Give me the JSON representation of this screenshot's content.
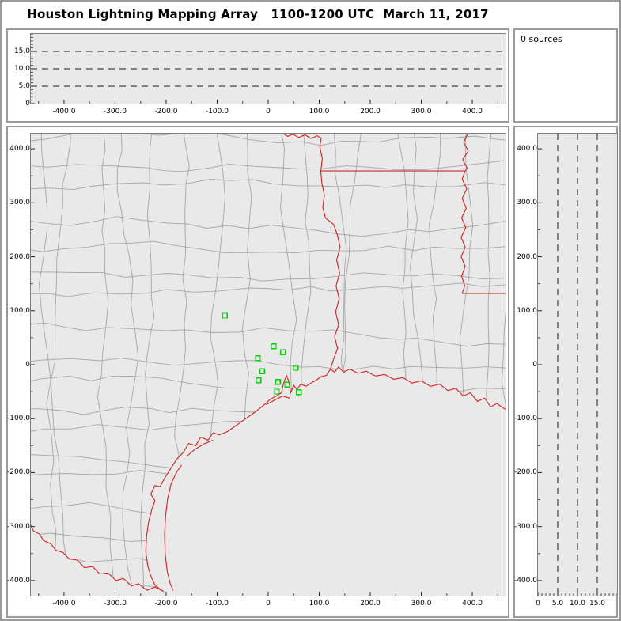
{
  "title": "Houston Lightning Mapping Array   1100-1200 UTC  March 11, 2017",
  "colors": {
    "county_line": "#a6a6a6",
    "state_border": "#d22222",
    "station_marker": "#00cf00",
    "plot_background": "#e9e9e9",
    "frame": "#9b9b9b",
    "dashed_line": "#1a1a1a"
  },
  "chart_data": [
    {
      "type": "scatter",
      "name": "altitude-vs-east-west",
      "position": "top",
      "xlim": [
        -465,
        465
      ],
      "ylim": [
        0,
        20
      ],
      "x_ticks": [
        -400,
        -300,
        -200,
        -100,
        0,
        100,
        200,
        300,
        400
      ],
      "x_tick_labels": [
        "-400.0",
        "-300.0",
        "-200.0",
        "-100.0",
        "0",
        "100.0",
        "200.0",
        "300.0",
        "400.0"
      ],
      "y_ticks": [
        0,
        5,
        10,
        15
      ],
      "y_tick_labels": [
        "0",
        "5.0",
        "10.0",
        "15.0"
      ],
      "dashed_y_levels": [
        5,
        10,
        15
      ],
      "points": []
    },
    {
      "type": "scatter",
      "name": "plan-view-map",
      "position": "main",
      "xlim": [
        -465,
        465
      ],
      "ylim": [
        -428,
        428
      ],
      "x_ticks": [
        -400,
        -300,
        -200,
        -100,
        0,
        100,
        200,
        300,
        400
      ],
      "x_tick_labels": [
        "-400.0",
        "-300.0",
        "-200.0",
        "-100.0",
        "0",
        "100.0",
        "200.0",
        "300.0",
        "400.0"
      ],
      "y_ticks": [
        400,
        300,
        200,
        100,
        0,
        -100,
        -200,
        -300,
        -400
      ],
      "y_tick_labels": [
        "400.0",
        "300.0",
        "200.0",
        "100.0",
        "0",
        "-100.0",
        "-200.0",
        "-300.0",
        "-400.0"
      ],
      "series": [
        {
          "name": "lma-stations",
          "marker": "open-square",
          "color": "#00cf00",
          "points": [
            [
              -85,
              91
            ],
            [
              11,
              34
            ],
            [
              -20,
              12
            ],
            [
              29,
              23
            ],
            [
              -12,
              -12
            ],
            [
              -19,
              -29
            ],
            [
              19,
              -32
            ],
            [
              54,
              -6
            ],
            [
              17,
              -50
            ],
            [
              37,
              -37
            ],
            [
              60,
              -51
            ]
          ]
        },
        {
          "name": "lightning-sources",
          "points": []
        }
      ]
    },
    {
      "type": "scatter",
      "name": "altitude-vs-north-south",
      "position": "right",
      "xlim": [
        0,
        20
      ],
      "ylim": [
        -428,
        428
      ],
      "x_ticks": [
        0,
        5,
        10,
        15
      ],
      "x_tick_labels": [
        "0",
        "5.0",
        "10.0",
        "15.0"
      ],
      "y_ticks": [
        400,
        300,
        200,
        100,
        0,
        -100,
        -200,
        -300,
        -400
      ],
      "y_tick_labels": [
        "400.0",
        "300.0",
        "200.0",
        "100.0",
        "0",
        "-100.0",
        "-200.0",
        "-300.0",
        "-400.0"
      ],
      "dashed_x_levels": [
        5,
        10,
        15
      ],
      "points": []
    },
    {
      "type": "histogram",
      "name": "source-count",
      "label": "0 sources",
      "points": []
    }
  ]
}
